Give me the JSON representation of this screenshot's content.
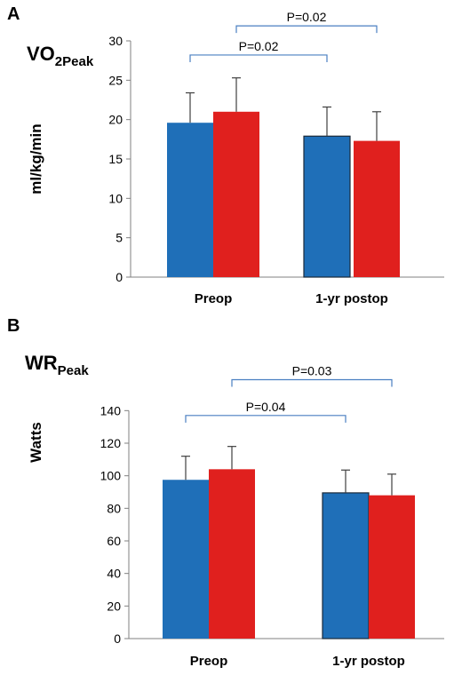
{
  "chart_data": [
    {
      "type": "bar",
      "panel_label": "A",
      "title_main": "VO",
      "title_sub": "2Peak",
      "ylabel": "ml/kg/min",
      "categories": [
        "Preop",
        "1-yr postop"
      ],
      "ylim": [
        0,
        30
      ],
      "yticks": [
        "0",
        "5",
        "10",
        "15",
        "20",
        "25",
        "30"
      ],
      "series": [
        {
          "color": "#1f6fb8",
          "values": [
            19.6,
            17.9
          ],
          "errors": [
            3.8,
            3.7
          ]
        },
        {
          "color": "#e0201e",
          "values": [
            21.0,
            17.3
          ],
          "errors": [
            4.3,
            3.7
          ]
        }
      ],
      "annotations": [
        {
          "text": "P=0.02",
          "from_category": 0,
          "from_series": 0,
          "to_category": 1,
          "to_series": 0,
          "y": 28.2
        },
        {
          "text": "P=0.02",
          "from_category": 0,
          "from_series": 1,
          "to_category": 1,
          "to_series": 1,
          "y": 31.9
        }
      ]
    },
    {
      "type": "bar",
      "panel_label": "B",
      "title_main": "WR",
      "title_sub": "Peak",
      "ylabel": "Watts",
      "categories": [
        "Preop",
        "1-yr postop"
      ],
      "ylim": [
        0,
        150
      ],
      "yticks": [
        "0",
        "20",
        "40",
        "60",
        "80",
        "100",
        "120",
        "140"
      ],
      "series": [
        {
          "color": "#1f6fb8",
          "values": [
            97.5,
            89.5
          ],
          "errors": [
            14.5,
            14.0
          ]
        },
        {
          "color": "#e0201e",
          "values": [
            104.0,
            88.0
          ],
          "errors": [
            14.0,
            13.0
          ]
        }
      ],
      "annotations": [
        {
          "text": "P=0.04",
          "from_category": 0,
          "from_series": 0,
          "to_category": 1,
          "to_series": 0,
          "y": 137
        },
        {
          "text": "P=0.03",
          "from_category": 0,
          "from_series": 1,
          "to_category": 1,
          "to_series": 1,
          "y": 159
        }
      ]
    }
  ]
}
